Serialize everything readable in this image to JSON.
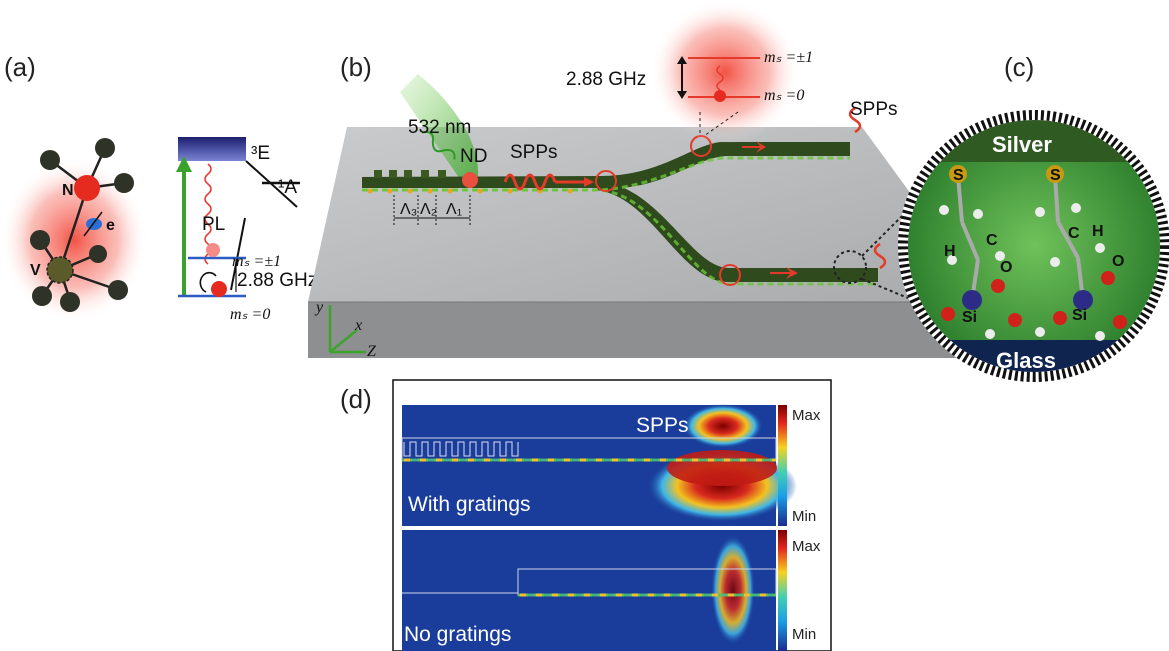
{
  "panels": {
    "a": {
      "label": "(a)",
      "atoms": {
        "n": "N",
        "v": "V",
        "e": "e"
      },
      "levels": {
        "excited": "³E",
        "singlet": "¹A",
        "pl": "PL",
        "ms_pm1": "mₛ =±1",
        "ms_0": "mₛ =0",
        "gap": "2.88 GHz"
      }
    },
    "b": {
      "label": "(b)",
      "laser": "532 nm",
      "nd": "ND",
      "spps_mid": "SPPs",
      "spps_out": "SPPs",
      "inset_freq": "2.88 GHz",
      "inset_pm1": "mₛ =±1",
      "inset_0": "mₛ =0",
      "periods": [
        "Λ₃",
        "Λ₂",
        "Λ₁"
      ],
      "axes": {
        "y": "y",
        "x": "x",
        "z": "Z"
      }
    },
    "c": {
      "label": "(c)",
      "top": "Silver",
      "bottom": "Glass",
      "atoms": {
        "s1": "S",
        "s2": "S",
        "c1": "C",
        "c2": "C",
        "h1": "H",
        "h2": "H",
        "si1": "Si",
        "si2": "Si",
        "o1": "O",
        "o2": "O"
      }
    },
    "d": {
      "label": "(d)",
      "top_map": {
        "spps": "SPPs",
        "caption": "With gratings"
      },
      "bottom_map": {
        "caption": "No gratings"
      },
      "colorbar": {
        "max": "Max",
        "min": "Min"
      }
    }
  },
  "colors": {
    "waveguide": "#2f4a1c",
    "highlight": "#e53a2a",
    "slab": "#a9abae",
    "field_bg": "#1a3c9b",
    "silver": "#2f5a22",
    "glass": "#0f2550"
  }
}
